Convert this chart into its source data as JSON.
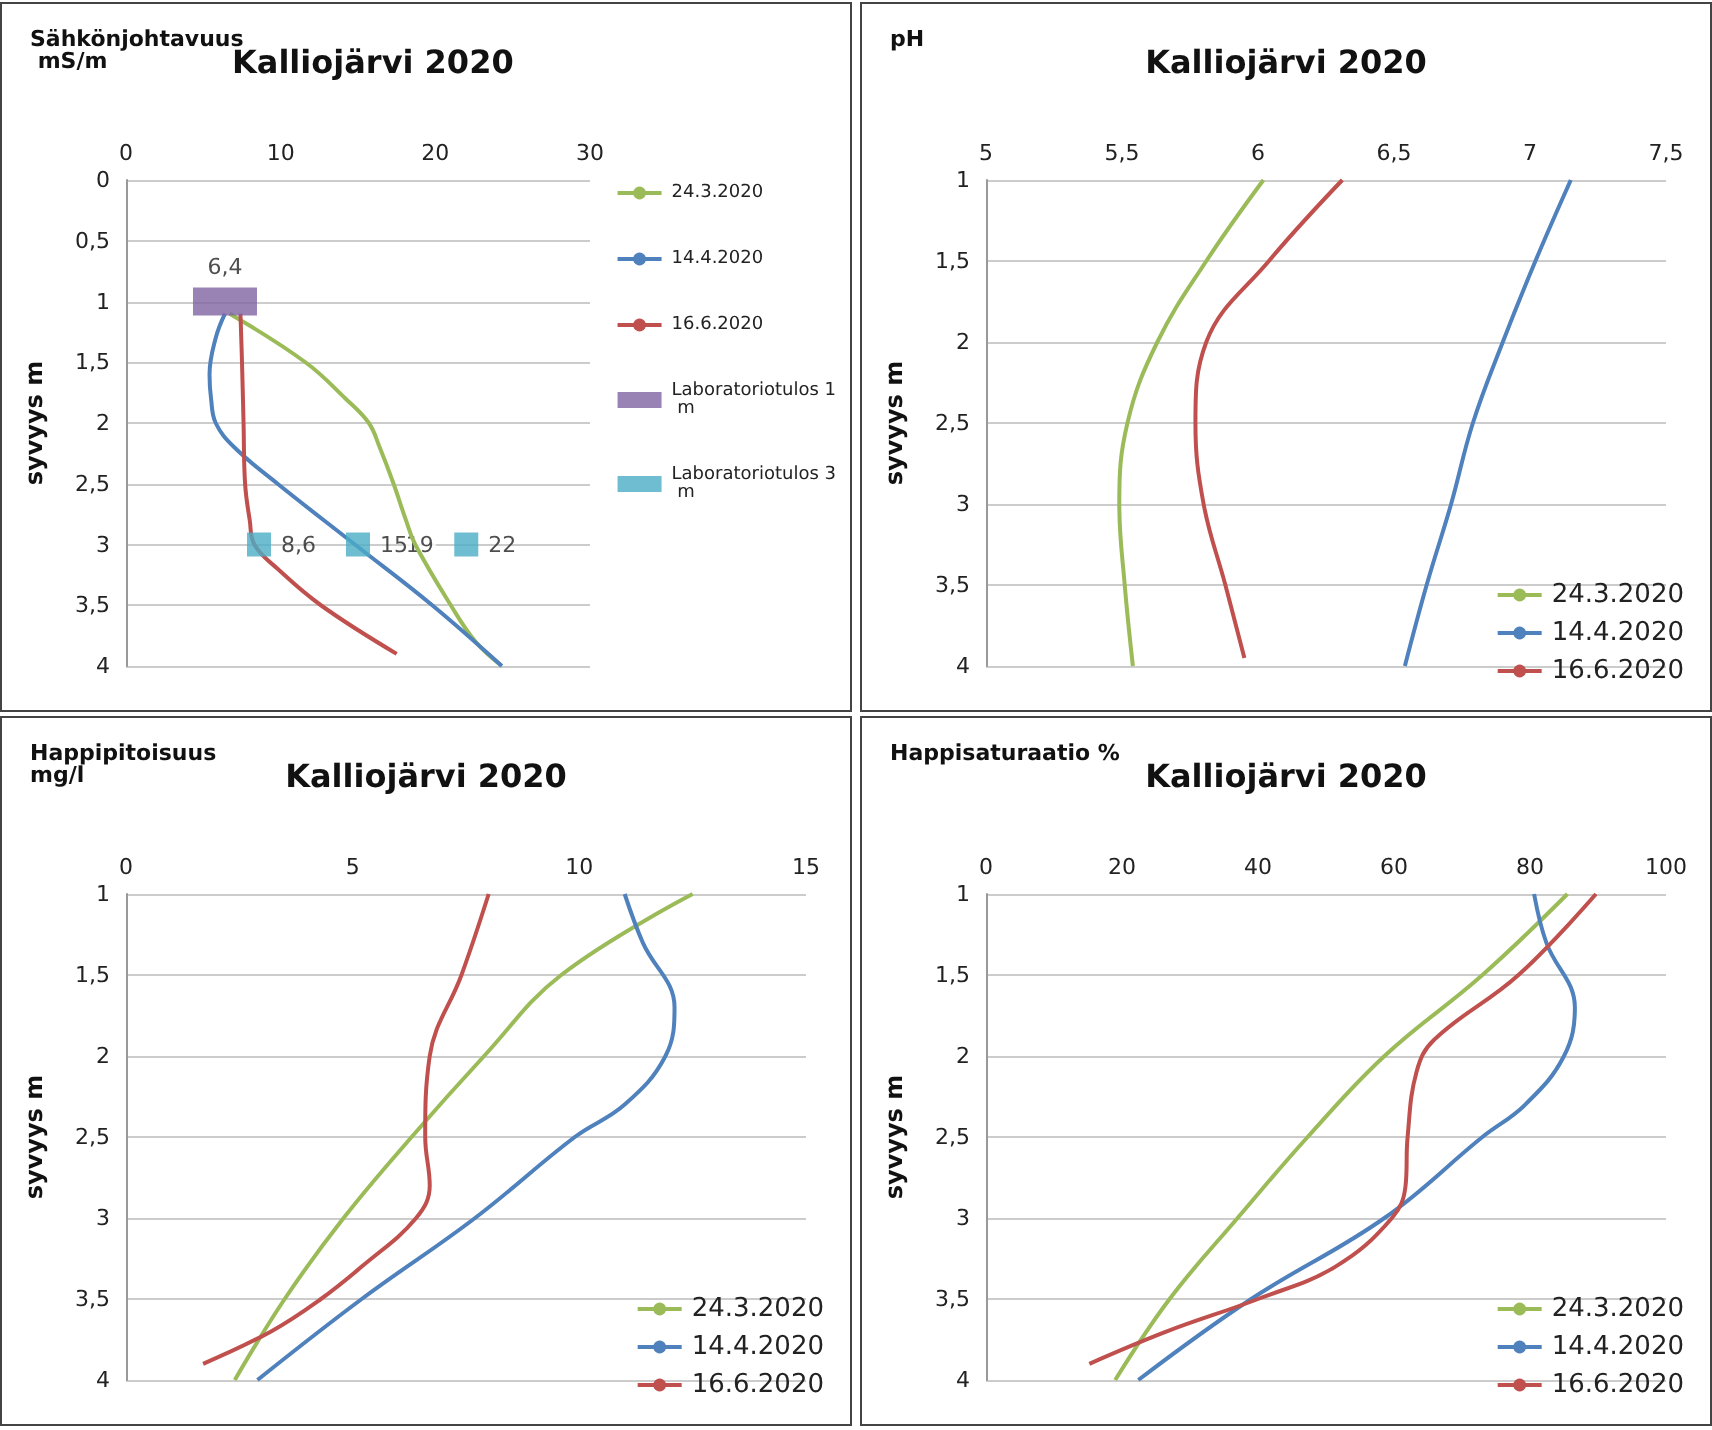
{
  "chart_data": [
    {
      "type": "line",
      "orientation": "horizontal",
      "title": "Kalliojärvi 2020",
      "xlabel": "Sähkönjohtavuus mS/m",
      "ylabel": "syvyys m",
      "xlim": [
        0,
        30
      ],
      "xticks": [
        0,
        10,
        20,
        30
      ],
      "ylim": [
        4,
        0
      ],
      "yticks": [
        0,
        {
          "value": 0.5,
          "label": "0,5"
        },
        1,
        {
          "value": 1.5,
          "label": "1,5"
        },
        2,
        {
          "value": 2.5,
          "label": "2,5"
        },
        3,
        {
          "value": 3.5,
          "label": "3,5"
        },
        4
      ],
      "grid": "y",
      "legend": "right",
      "series": [
        {
          "name": "24.3.2020",
          "color": "#9bbb59",
          "values": [
            6.7,
            11.6,
            14.2,
            15.7,
            16.4,
            17.3,
            18.1,
            18.7,
            21,
            22.6,
            24.3
          ],
          "x": [
            1.1,
            1.5,
            1.8,
            2.0,
            2.2,
            2.5,
            2.8,
            3.0,
            3.5,
            3.8,
            4.0
          ]
        },
        {
          "name": "14.4.2020",
          "color": "#4f81bd",
          "values": [
            6.4,
            5.8,
            5.4,
            5.5,
            5.8,
            7.0,
            9.8,
            14.8,
            19.8,
            24.3
          ],
          "x": [
            1.1,
            1.3,
            1.6,
            1.8,
            2.0,
            2.2,
            2.5,
            3.0,
            3.5,
            4.0
          ]
        },
        {
          "name": "16.6.2020",
          "color": "#c0504d",
          "values": [
            7.4,
            7.5,
            7.6,
            7.7,
            8.0,
            8.3,
            9.8,
            12.6,
            17.5
          ],
          "x": [
            1.1,
            1.5,
            2.0,
            2.5,
            2.8,
            3.0,
            3.2,
            3.5,
            3.9
          ]
        },
        {
          "name": "Laboratoriotulos 1 m",
          "type": "scatter",
          "marker": "square",
          "color": "#8064a2",
          "values": [
            6.4
          ],
          "x": [
            1
          ],
          "value_labels": [
            "6,4"
          ]
        },
        {
          "name": "Laboratoriotulos 3 m",
          "type": "scatter",
          "marker": "square",
          "color": "#4bacc6",
          "values": [
            8.6,
            15,
            22
          ],
          "x": [
            3,
            3,
            3
          ],
          "value_labels": [
            "8,6",
            "15",
            "22"
          ]
        }
      ],
      "annotations": [
        {
          "text": "19",
          "x": 19,
          "y": 3
        }
      ]
    },
    {
      "type": "line",
      "orientation": "horizontal",
      "title": "Kalliojärvi 2020",
      "xlabel": "pH",
      "ylabel": "syvyys m",
      "xlim": [
        5,
        7.5
      ],
      "xticks": [
        5,
        {
          "value": 5.5,
          "label": "5,5"
        },
        6,
        {
          "value": 6.5,
          "label": "6,5"
        },
        7,
        {
          "value": 7.5,
          "label": "7,5"
        }
      ],
      "ylim": [
        4,
        1
      ],
      "yticks": [
        1,
        {
          "value": 1.5,
          "label": "1,5"
        },
        2,
        {
          "value": 2.5,
          "label": "2,5"
        },
        3,
        {
          "value": 3.5,
          "label": "3,5"
        },
        4
      ],
      "grid": "y",
      "legend": "bottom right",
      "series": [
        {
          "name": "24.3.2020",
          "color": "#9bbb59",
          "values": [
            6.02,
            5.81,
            5.63,
            5.52,
            5.49,
            5.51,
            5.54
          ],
          "x": [
            1,
            1.5,
            2,
            2.5,
            3,
            3.5,
            4
          ]
        },
        {
          "name": "14.4.2020",
          "color": "#4f81bd",
          "values": [
            7.15,
            7.02,
            6.9,
            6.79,
            6.71,
            6.62,
            6.54
          ],
          "x": [
            1,
            1.5,
            2,
            2.5,
            3,
            3.5,
            4
          ]
        },
        {
          "name": "16.6.2020",
          "color": "#c0504d",
          "values": [
            6.31,
            6.04,
            5.81,
            5.77,
            5.8,
            5.88,
            5.95
          ],
          "x": [
            1,
            1.5,
            2,
            2.5,
            3,
            3.5,
            3.95
          ]
        }
      ]
    },
    {
      "type": "line",
      "orientation": "horizontal",
      "title": "Kalliojärvi 2020",
      "xlabel": "Happipitoisuus mg/l",
      "ylabel": "syvyys m",
      "xlim": [
        0,
        15
      ],
      "xticks": [
        0,
        5,
        10,
        15
      ],
      "ylim": [
        4,
        1
      ],
      "yticks": [
        1,
        {
          "value": 1.5,
          "label": "1,5"
        },
        2,
        {
          "value": 2.5,
          "label": "2,5"
        },
        3,
        {
          "value": 3.5,
          "label": "3,5"
        },
        4
      ],
      "grid": "y",
      "legend": "bottom right",
      "series": [
        {
          "name": "24.3.2020",
          "color": "#9bbb59",
          "values": [
            12.5,
            9.6,
            7.9,
            6.3,
            4.8,
            3.5,
            2.4
          ],
          "x": [
            1,
            1.5,
            2,
            2.5,
            3,
            3.5,
            4
          ]
        },
        {
          "name": "14.4.2020",
          "color": "#4f81bd",
          "values": [
            11.0,
            11.4,
            12.1,
            11.9,
            11.0,
            9.9,
            7.7,
            5.2,
            2.9
          ],
          "x": [
            1,
            1.3,
            1.7,
            2,
            2.3,
            2.5,
            3,
            3.5,
            4
          ]
        },
        {
          "name": "16.6.2020",
          "color": "#c0504d",
          "values": [
            8.0,
            7.4,
            6.7,
            6.6,
            6.7,
            6.4,
            5.2,
            4.3,
            3.2,
            1.7
          ],
          "x": [
            1,
            1.5,
            2,
            2.5,
            2.8,
            3,
            3.3,
            3.5,
            3.7,
            3.9
          ]
        }
      ]
    },
    {
      "type": "line",
      "orientation": "horizontal",
      "title": "Kalliojärvi 2020",
      "xlabel": "Happisaturaatio %",
      "ylabel": "syvyys m",
      "xlim": [
        0,
        100
      ],
      "xticks": [
        0,
        20,
        40,
        60,
        80,
        100
      ],
      "ylim": [
        4,
        1
      ],
      "yticks": [
        1,
        {
          "value": 1.5,
          "label": "1,5"
        },
        2,
        {
          "value": 2.5,
          "label": "2,5"
        },
        3,
        {
          "value": 3.5,
          "label": "3,5"
        },
        4
      ],
      "grid": "y",
      "legend": "bottom right",
      "series": [
        {
          "name": "24.3.2020",
          "color": "#9bbb59",
          "values": [
            85.5,
            73,
            58.6,
            47.3,
            37,
            27,
            19
          ],
          "x": [
            1,
            1.5,
            2,
            2.5,
            3,
            3.5,
            4
          ]
        },
        {
          "name": "14.4.2020",
          "color": "#4f81bd",
          "values": [
            80.6,
            82.4,
            86.6,
            85,
            79.3,
            73,
            58.6,
            39,
            22.4
          ],
          "x": [
            1,
            1.3,
            1.7,
            2,
            2.3,
            2.5,
            3,
            3.5,
            4
          ]
        },
        {
          "name": "16.6.2020",
          "color": "#c0504d",
          "values": [
            89.7,
            78.3,
            65.9,
            63.3,
            62,
            61.7,
            59.7,
            51.4,
            40,
            26.6,
            15.2
          ],
          "x": [
            1,
            1.5,
            1.9,
            2.1,
            2.5,
            2.8,
            3,
            3.3,
            3.5,
            3.7,
            3.9
          ]
        }
      ]
    }
  ]
}
